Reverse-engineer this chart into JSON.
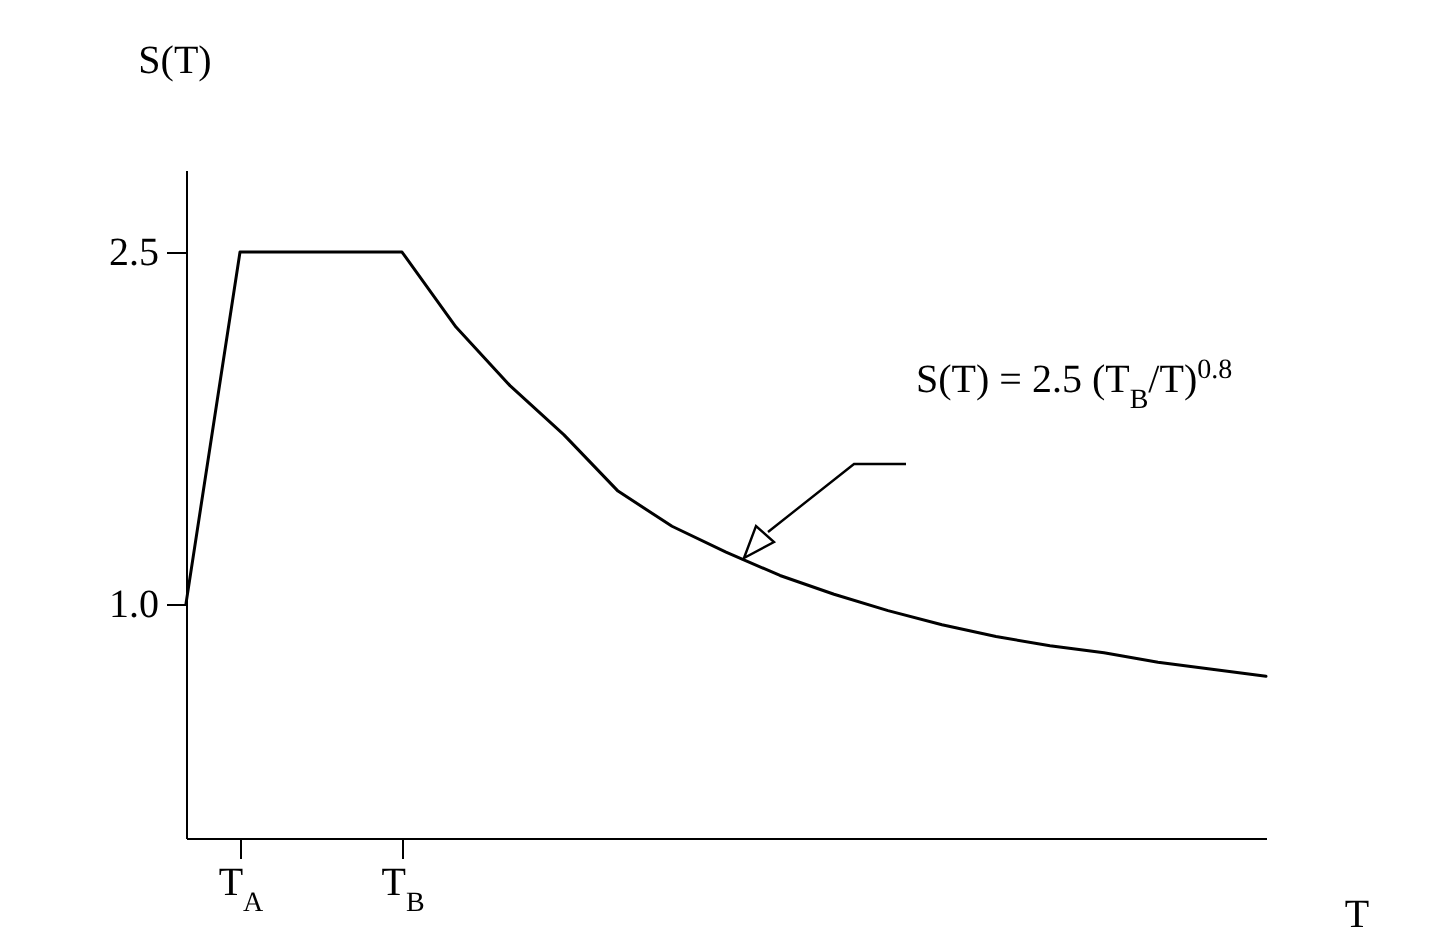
{
  "chart_data": {
    "type": "line",
    "xlabel": "T",
    "ylabel": "S(T)",
    "categories": [
      null,
      "T$_{A}$",
      null,
      null,
      "T$_{B}$",
      null,
      null,
      null,
      null,
      null,
      null,
      null,
      null,
      null,
      null,
      null,
      null,
      null,
      null,
      null,
      null
    ],
    "series": [
      {
        "color": "#000000",
        "values": [
          1.0,
          2.5,
          2.5,
          2.5,
          2.5,
          2.18,
          1.93,
          1.72,
          1.48,
          1.33,
          1.22,
          1.12,
          1.04,
          0.97,
          0.91,
          0.86,
          0.82,
          0.79,
          0.75,
          0.72,
          0.69
        ]
      }
    ],
    "ylim": [
      0,
      2.85
    ],
    "yticks": [
      {
        "value": 1,
        "label": "1.0"
      },
      2.5
    ],
    "annotations": [
      "S(T) = 2.5 (T$_{B}$/T)$^{0.8}$"
    ],
    "grid": false,
    "marker": "none",
    "line_style": "solid"
  }
}
